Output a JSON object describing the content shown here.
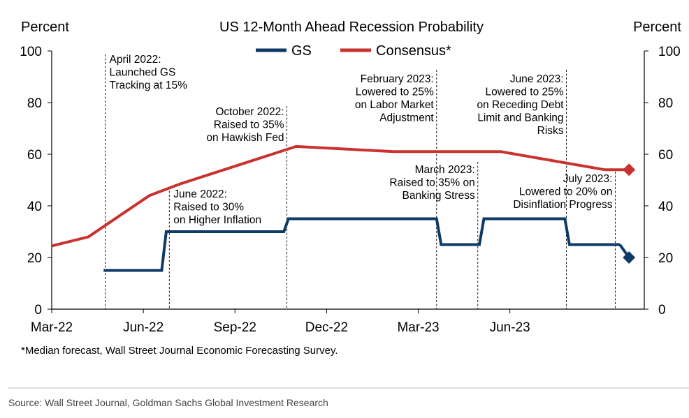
{
  "header": {
    "left_unit": "Percent",
    "right_unit": "Percent"
  },
  "chart_data": {
    "type": "line",
    "title": "US 12-Month Ahead Recession Probability",
    "y_range": [
      0,
      100
    ],
    "y_ticks": [
      "0",
      "20",
      "40",
      "60",
      "80",
      "100"
    ],
    "y_tick_values": [
      0,
      20,
      40,
      60,
      80,
      100
    ],
    "x_ticks": [
      {
        "label": "Mar-22",
        "month": 0
      },
      {
        "label": "Jun-22",
        "month": 3
      },
      {
        "label": "Sep-22",
        "month": 6
      },
      {
        "label": "Dec-22",
        "month": 9
      },
      {
        "label": "Mar-23",
        "month": 12
      },
      {
        "label": "Jun-23",
        "month": 15
      }
    ],
    "x_range_months": [
      0,
      19.4
    ],
    "legend": {
      "placement": "top-center"
    },
    "series": [
      {
        "name": "GS",
        "color": "#0e3a66",
        "step": true,
        "points": [
          [
            1.7,
            15
          ],
          [
            3.6,
            15
          ],
          [
            3.75,
            30
          ],
          [
            7.6,
            30
          ],
          [
            7.75,
            35
          ],
          [
            12.6,
            35
          ],
          [
            12.75,
            25
          ],
          [
            14.0,
            25
          ],
          [
            14.15,
            35
          ],
          [
            16.8,
            35
          ],
          [
            16.95,
            25
          ],
          [
            18.6,
            25
          ],
          [
            18.9,
            20
          ]
        ],
        "final_marker": {
          "month": 18.9,
          "value": 20,
          "shape": "diamond"
        }
      },
      {
        "name": "Consensus*",
        "color": "#c8322f",
        "step": false,
        "points": [
          [
            0,
            24.5
          ],
          [
            1.2,
            28
          ],
          [
            3.2,
            44
          ],
          [
            4.2,
            48.5
          ],
          [
            8.0,
            63
          ],
          [
            11.2,
            61
          ],
          [
            14.7,
            61
          ],
          [
            18.1,
            54
          ],
          [
            18.9,
            54
          ]
        ],
        "final_marker": {
          "month": 18.9,
          "value": 54,
          "shape": "diamond"
        }
      }
    ],
    "annotations": [
      {
        "month": 1.75,
        "align": "start",
        "lines": [
          "April 2022:",
          "Launched GS",
          "Tracking at 15%"
        ],
        "top": 1
      },
      {
        "month": 3.85,
        "align": "start",
        "lines": [
          "June 2022:",
          "Raised to 30%",
          "on Higher Inflation"
        ],
        "top": 2
      },
      {
        "month": 7.7,
        "align": "end",
        "lines": [
          "October 2022:",
          "Raised to 35%",
          "on Hawkish Fed"
        ],
        "top": 3
      },
      {
        "month": 12.6,
        "align": "end",
        "lines": [
          "February 2023:",
          "Lowered to 25%",
          "on Labor Market",
          "Adjustment"
        ],
        "top": 4
      },
      {
        "month": 13.95,
        "align": "end",
        "lines": [
          "March 2023:",
          "Raised to 35% on",
          "Banking Stress"
        ],
        "top": 5
      },
      {
        "month": 16.85,
        "align": "end",
        "lines": [
          "June 2023:",
          "Lowered to 25%",
          "on Receding Debt",
          "Limit and Banking",
          "Risks"
        ],
        "top": 6
      },
      {
        "month": 18.45,
        "align": "end",
        "lines": [
          "July 2023:",
          "Lowered to 20% on",
          "Disinflation Progress"
        ],
        "top": 7
      }
    ],
    "footnote": "*Median forecast, Wall Street Journal Economic Forecasting Survey.",
    "source": "Source: Wall Street Journal, Goldman Sachs Global Investment Research"
  }
}
